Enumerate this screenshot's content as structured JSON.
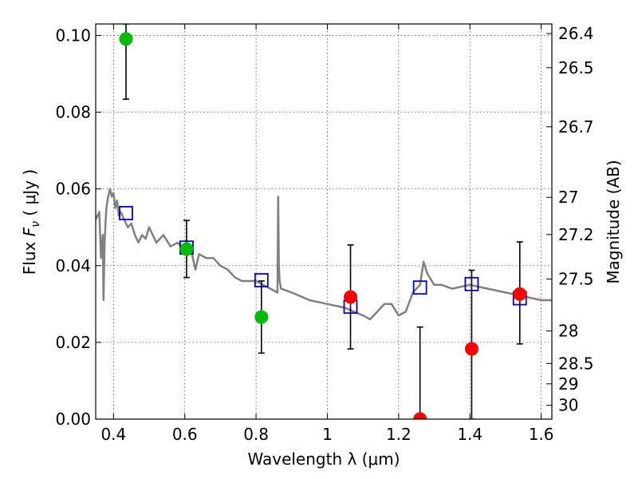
{
  "chart_data": {
    "type": "scatter",
    "xlabel": "Wavelength  λ (μm)",
    "ylabel": "Flux  F_ν ( μJy )",
    "ylabel_parts": {
      "prefix": "Flux  ",
      "symbol": "F",
      "subscript": "ν",
      "suffix": "  ( μJy )"
    },
    "y2label": "Magnitude (AB)",
    "xlim": [
      0.35,
      1.63
    ],
    "ylim": [
      0.0,
      0.103
    ],
    "x_ticks": [
      0.4,
      0.6,
      0.8,
      1.0,
      1.2,
      1.4,
      1.6
    ],
    "x_tick_labels": [
      "0.4",
      "0.6",
      "0.8",
      "1",
      "1.2",
      "1.4",
      "1.6"
    ],
    "y_ticks": [
      0.0,
      0.02,
      0.04,
      0.06,
      0.08,
      0.1
    ],
    "y_tick_labels": [
      "0.00",
      "0.02",
      "0.04",
      "0.06",
      "0.08",
      "0.10"
    ],
    "y2_ticks": [
      {
        "label": "26.4",
        "flux": 0.1005
      },
      {
        "label": "26.5",
        "flux": 0.0916
      },
      {
        "label": "26.7",
        "flux": 0.0762
      },
      {
        "label": "27",
        "flux": 0.0578
      },
      {
        "label": "27.2",
        "flux": 0.0481
      },
      {
        "label": "27.5",
        "flux": 0.0365
      },
      {
        "label": "28",
        "flux": 0.023
      },
      {
        "label": "28.5",
        "flux": 0.0145
      },
      {
        "label": "29",
        "flux": 0.0092
      },
      {
        "label": "30",
        "flux": 0.0036
      }
    ],
    "grid": true,
    "series": [
      {
        "style": "line",
        "color": "#808080",
        "x": [
          0.35,
          0.36,
          0.365,
          0.37,
          0.372,
          0.375,
          0.378,
          0.38,
          0.385,
          0.39,
          0.395,
          0.4,
          0.405,
          0.41,
          0.415,
          0.42,
          0.43,
          0.44,
          0.45,
          0.46,
          0.47,
          0.48,
          0.49,
          0.5,
          0.52,
          0.54,
          0.56,
          0.58,
          0.6,
          0.62,
          0.63,
          0.64,
          0.66,
          0.68,
          0.7,
          0.72,
          0.74,
          0.76,
          0.78,
          0.8,
          0.82,
          0.84,
          0.86,
          0.862,
          0.864,
          0.866,
          0.87,
          0.9,
          0.95,
          1.0,
          1.05,
          1.1,
          1.12,
          1.14,
          1.16,
          1.18,
          1.2,
          1.22,
          1.24,
          1.26,
          1.27,
          1.28,
          1.3,
          1.32,
          1.35,
          1.4,
          1.45,
          1.5,
          1.55,
          1.6,
          1.63
        ],
        "y": [
          0.052,
          0.054,
          0.042,
          0.048,
          0.031,
          0.046,
          0.052,
          0.055,
          0.058,
          0.06,
          0.058,
          0.059,
          0.055,
          0.057,
          0.053,
          0.054,
          0.052,
          0.05,
          0.051,
          0.048,
          0.046,
          0.048,
          0.047,
          0.05,
          0.046,
          0.048,
          0.045,
          0.046,
          0.044,
          0.043,
          0.039,
          0.043,
          0.042,
          0.042,
          0.04,
          0.039,
          0.037,
          0.036,
          0.036,
          0.036,
          0.035,
          0.034,
          0.033,
          0.058,
          0.04,
          0.036,
          0.034,
          0.033,
          0.031,
          0.03,
          0.029,
          0.027,
          0.026,
          0.028,
          0.03,
          0.03,
          0.027,
          0.028,
          0.033,
          0.035,
          0.041,
          0.038,
          0.035,
          0.035,
          0.034,
          0.035,
          0.034,
          0.033,
          0.032,
          0.031,
          0.031
        ]
      },
      {
        "style": "open-square",
        "color": "#0000cc",
        "x": [
          0.435,
          0.605,
          0.815,
          1.065,
          1.26,
          1.405,
          1.54
        ],
        "y": [
          0.0537,
          0.0447,
          0.0362,
          0.0293,
          0.0343,
          0.0352,
          0.0315
        ]
      },
      {
        "style": "filled-circle",
        "color": "#00bb00",
        "x": [
          0.435,
          0.605,
          0.815
        ],
        "y": [
          0.0991,
          0.0443,
          0.0266
        ],
        "yerr_low": [
          0.0834,
          0.0369,
          0.0172
        ],
        "yerr_high": [
          0.103,
          0.0518,
          0.036
        ]
      },
      {
        "style": "filled-circle",
        "color": "#ff0000",
        "x": [
          1.065,
          1.26,
          1.405,
          1.54
        ],
        "y": [
          0.0318,
          0.0,
          0.0183,
          0.0326
        ],
        "yerr_low": [
          0.0183,
          0.0,
          0.0,
          0.0196
        ],
        "yerr_high": [
          0.0454,
          0.024,
          0.0388,
          0.0462
        ]
      }
    ]
  }
}
